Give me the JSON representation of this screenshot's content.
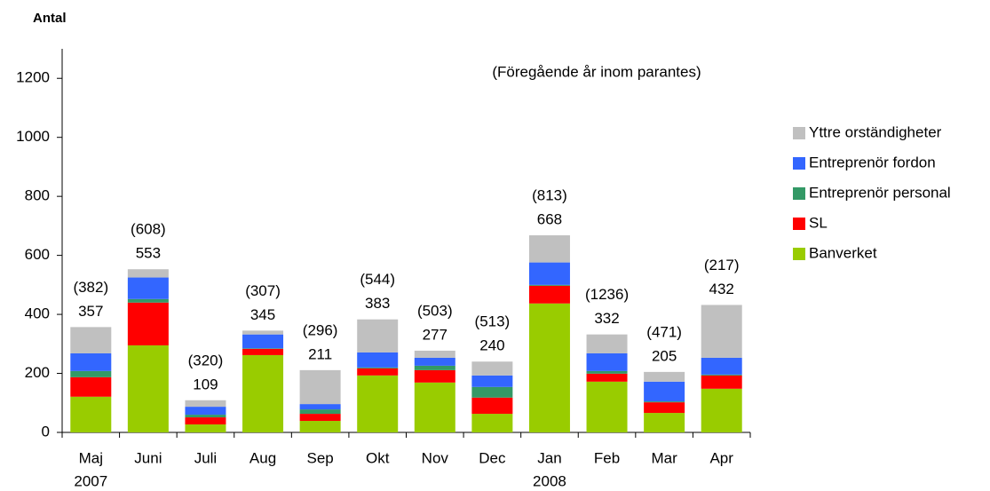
{
  "chart_data": {
    "type": "stacked_bar",
    "y_label": "Antal",
    "annotation": "(Föregående år inom parantes)",
    "categories": [
      "Maj",
      "Juni",
      "Juli",
      "Aug",
      "Sep",
      "Okt",
      "Nov",
      "Dec",
      "Jan",
      "Feb",
      "Mar",
      "Apr"
    ],
    "year_labels": [
      "2007",
      null,
      null,
      null,
      null,
      null,
      null,
      null,
      "2008",
      null,
      null,
      null
    ],
    "series": [
      {
        "name": "Banverket",
        "color": "#99cc00",
        "values": [
          121,
          295,
          27,
          262,
          39,
          193,
          169,
          63,
          437,
          172,
          66,
          148
        ]
      },
      {
        "name": "SL",
        "color": "#ff0000",
        "values": [
          66,
          145,
          24,
          21,
          24,
          24,
          42,
          55,
          60,
          27,
          36,
          45
        ]
      },
      {
        "name": "Entreprenör personal",
        "color": "#339966",
        "values": [
          21,
          12,
          9,
          2,
          15,
          3,
          15,
          36,
          3,
          9,
          3,
          3
        ]
      },
      {
        "name": "Entreprenör fordon",
        "color": "#3366ff",
        "values": [
          60,
          73,
          27,
          47,
          18,
          51,
          27,
          39,
          76,
          60,
          67,
          57
        ]
      },
      {
        "name": "Yttre orständigheter",
        "color": "#c0c0c0",
        "values": [
          89,
          28,
          22,
          13,
          115,
          112,
          24,
          47,
          92,
          64,
          33,
          179
        ]
      }
    ],
    "totals": [
      357,
      553,
      109,
      345,
      211,
      383,
      277,
      240,
      668,
      332,
      205,
      432
    ],
    "previous_year": {
      "values": [
        382,
        608,
        320,
        307,
        296,
        544,
        503,
        513,
        813,
        1236,
        471,
        217
      ],
      "value_labels": [
        "(382)",
        "(608)",
        "(320)",
        "(307)",
        "(296)",
        "(544)",
        "(503)",
        "(513)",
        "(813)",
        "(1236)",
        "(471)",
        "(217)"
      ]
    },
    "ylim": [
      0,
      1300
    ],
    "yticks": [
      0,
      200,
      400,
      600,
      800,
      1000,
      1200
    ],
    "grid": false,
    "legend": "right"
  }
}
